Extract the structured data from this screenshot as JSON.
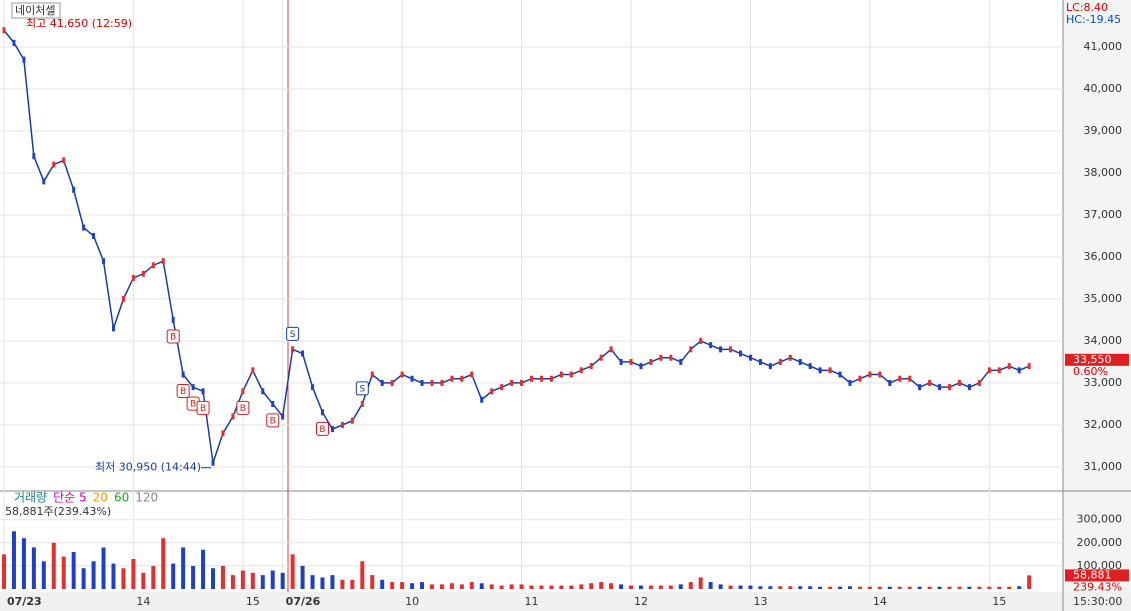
{
  "chart_data": {
    "type": "line",
    "title": "네이처셀",
    "high_label": "최고 41,650 (12:59)",
    "low_label": "최저 30,950 (14:44)",
    "lc_label": "LC:8.40",
    "hc_label": "HC:-19.45",
    "current_price": {
      "value": 33550,
      "label": "33,550"
    },
    "change_label": "0.60%",
    "volume_legend": [
      "거래량",
      "단순 5",
      "20",
      "60",
      "120"
    ],
    "volume_info": "58,881주(239.43%)",
    "current_volume": {
      "value": 58881,
      "label": "58,881"
    },
    "volume_ratio_label": "239.43%",
    "time_label": "15:30:00",
    "xticks": [
      {
        "value": 0,
        "label": "07/23"
      },
      {
        "value": 13,
        "label": "14"
      },
      {
        "value": 24,
        "label": "15"
      },
      {
        "value": 28,
        "label": "07/26"
      },
      {
        "value": 40,
        "label": "10"
      },
      {
        "value": 52,
        "label": "11"
      },
      {
        "value": 63,
        "label": "12"
      },
      {
        "value": 75,
        "label": "13"
      },
      {
        "value": 87,
        "label": "14"
      },
      {
        "value": 99,
        "label": "15"
      }
    ],
    "xlim": [
      0,
      106
    ],
    "ylim": [
      30450,
      42120
    ],
    "yticks": [
      {
        "value": 31000,
        "label": "31,000"
      },
      {
        "value": 32000,
        "label": "32,000"
      },
      {
        "value": 33000,
        "label": "33,000"
      },
      {
        "value": 34000,
        "label": "34,000"
      },
      {
        "value": 35000,
        "label": "35,000"
      },
      {
        "value": 36000,
        "label": "36,000"
      },
      {
        "value": 37000,
        "label": "37,000"
      },
      {
        "value": 38000,
        "label": "38,000"
      },
      {
        "value": 39000,
        "label": "39,000"
      },
      {
        "value": 40000,
        "label": "40,000"
      },
      {
        "value": 41000,
        "label": "41,000"
      }
    ],
    "values": [
      41400,
      41100,
      40700,
      38400,
      37800,
      38200,
      38300,
      37600,
      36700,
      36500,
      35900,
      34300,
      35000,
      35500,
      35600,
      35800,
      35900,
      34500,
      33200,
      32900,
      32800,
      31100,
      31800,
      32200,
      32800,
      33300,
      32800,
      32500,
      32200,
      33800,
      33700,
      32900,
      32300,
      31900,
      32000,
      32100,
      32500,
      33200,
      33000,
      33000,
      33200,
      33100,
      33000,
      33000,
      33000,
      33100,
      33100,
      33200,
      32600,
      32800,
      32900,
      33000,
      33000,
      33100,
      33100,
      33100,
      33200,
      33200,
      33300,
      33400,
      33600,
      33800,
      33500,
      33500,
      33400,
      33500,
      33600,
      33600,
      33500,
      33800,
      34000,
      33900,
      33800,
      33800,
      33700,
      33600,
      33500,
      33400,
      33500,
      33600,
      33500,
      33400,
      33300,
      33300,
      33200,
      33000,
      33100,
      33200,
      33200,
      33000,
      33100,
      33100,
      32900,
      33000,
      32900,
      32900,
      33000,
      32900,
      33000,
      33300,
      33300,
      33400,
      33300,
      33400
    ],
    "signals": [
      {
        "label": "B",
        "index": 17
      },
      {
        "label": "B",
        "index": 18
      },
      {
        "label": "B",
        "index": 19
      },
      {
        "label": "B",
        "index": 20
      },
      {
        "label": "B",
        "index": 24
      },
      {
        "label": "B",
        "index": 27
      },
      {
        "label": "S",
        "index": 29
      },
      {
        "label": "B",
        "index": 32
      },
      {
        "label": "S",
        "index": 36
      }
    ],
    "volume_ylim": [
      0,
      420000
    ],
    "volume_yticks": [
      {
        "value": 100000,
        "label": "100,000"
      },
      {
        "value": 200000,
        "label": "200,000"
      },
      {
        "value": 300000,
        "label": "300,000"
      }
    ],
    "volume": [
      150000,
      250000,
      220000,
      180000,
      120000,
      200000,
      140000,
      160000,
      90000,
      120000,
      180000,
      110000,
      90000,
      130000,
      70000,
      100000,
      220000,
      110000,
      180000,
      100000,
      170000,
      90000,
      100000,
      60000,
      80000,
      70000,
      60000,
      80000,
      70000,
      150000,
      100000,
      60000,
      50000,
      60000,
      40000,
      40000,
      120000,
      60000,
      40000,
      30000,
      30000,
      25000,
      30000,
      20000,
      20000,
      25000,
      20000,
      30000,
      25000,
      20000,
      15000,
      20000,
      20000,
      15000,
      15000,
      15000,
      15000,
      15000,
      20000,
      25000,
      30000,
      25000,
      20000,
      15000,
      15000,
      15000,
      15000,
      15000,
      20000,
      30000,
      50000,
      30000,
      20000,
      15000,
      15000,
      15000,
      12000,
      12000,
      12000,
      12000,
      12000,
      12000,
      10000,
      10000,
      10000,
      12000,
      10000,
      10000,
      10000,
      10000,
      10000,
      10000,
      10000,
      10000,
      10000,
      10000,
      10000,
      10000,
      10000,
      10000,
      10000,
      10000,
      12000,
      58881
    ]
  }
}
